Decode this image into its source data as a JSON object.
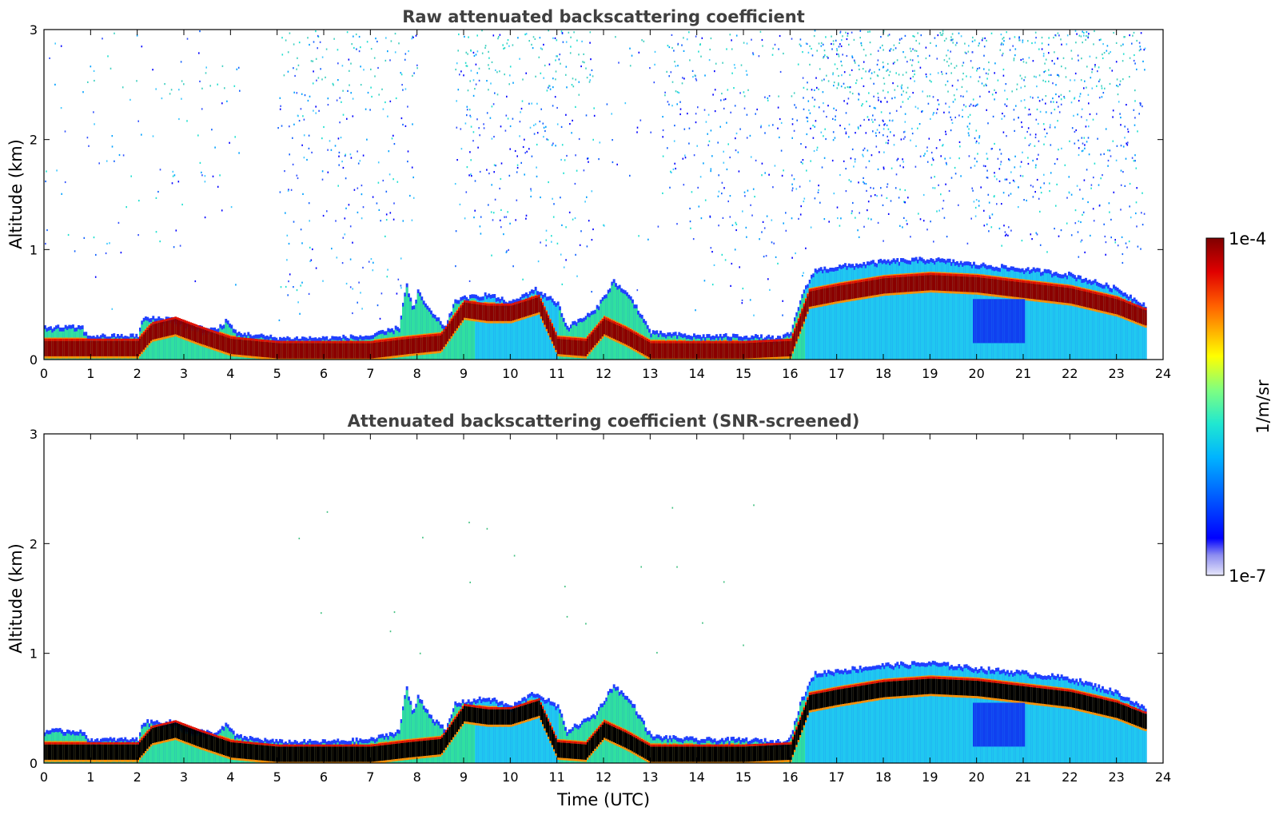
{
  "chart_data": [
    {
      "type": "heatmap",
      "title": "Raw attenuated backscattering coefficient",
      "xlabel": "",
      "ylabel": "Altitude (km)",
      "xlim": [
        0,
        24
      ],
      "ylim": [
        0,
        3
      ],
      "xticks": [
        "0",
        "1",
        "2",
        "3",
        "4",
        "5",
        "6",
        "7",
        "8",
        "9",
        "10",
        "11",
        "12",
        "13",
        "14",
        "15",
        "16",
        "17",
        "18",
        "19",
        "20",
        "21",
        "22",
        "23",
        "24"
      ],
      "yticks": [
        "0",
        "1",
        "2",
        "3"
      ],
      "data_end_hour": 23.6,
      "boundary_layer_top_km": [
        [
          0,
          0.3
        ],
        [
          0.8,
          0.3
        ],
        [
          0.9,
          0.22
        ],
        [
          2.0,
          0.22
        ],
        [
          2.1,
          0.38
        ],
        [
          2.8,
          0.38
        ],
        [
          3.2,
          0.3
        ],
        [
          3.7,
          0.28
        ],
        [
          3.9,
          0.36
        ],
        [
          4.1,
          0.25
        ],
        [
          5,
          0.2
        ],
        [
          6,
          0.2
        ],
        [
          7,
          0.22
        ],
        [
          7.6,
          0.3
        ],
        [
          7.75,
          0.7
        ],
        [
          7.9,
          0.45
        ],
        [
          8.0,
          0.62
        ],
        [
          8.3,
          0.42
        ],
        [
          8.6,
          0.3
        ],
        [
          8.8,
          0.55
        ],
        [
          9.5,
          0.6
        ],
        [
          10,
          0.52
        ],
        [
          10.5,
          0.65
        ],
        [
          11.0,
          0.52
        ],
        [
          11.2,
          0.3
        ],
        [
          11.8,
          0.45
        ],
        [
          12.2,
          0.72
        ],
        [
          12.6,
          0.55
        ],
        [
          13.0,
          0.25
        ],
        [
          14,
          0.22
        ],
        [
          15,
          0.22
        ],
        [
          15.8,
          0.2
        ],
        [
          16.0,
          0.25
        ],
        [
          16.2,
          0.55
        ],
        [
          16.5,
          0.82
        ],
        [
          17,
          0.85
        ],
        [
          18,
          0.9
        ],
        [
          19,
          0.92
        ],
        [
          20,
          0.87
        ],
        [
          21,
          0.83
        ],
        [
          22,
          0.78
        ],
        [
          23,
          0.65
        ],
        [
          23.6,
          0.5
        ]
      ],
      "boundary_layer_core_km": [
        [
          0,
          0.1
        ],
        [
          2.0,
          0.1
        ],
        [
          2.3,
          0.25
        ],
        [
          2.8,
          0.3
        ],
        [
          3.3,
          0.22
        ],
        [
          4,
          0.12
        ],
        [
          5,
          0.08
        ],
        [
          6,
          0.08
        ],
        [
          7,
          0.08
        ],
        [
          7.8,
          0.12
        ],
        [
          8.5,
          0.15
        ],
        [
          9.0,
          0.45
        ],
        [
          9.5,
          0.42
        ],
        [
          10,
          0.42
        ],
        [
          10.6,
          0.5
        ],
        [
          11.0,
          0.12
        ],
        [
          11.6,
          0.1
        ],
        [
          12.0,
          0.3
        ],
        [
          12.5,
          0.2
        ],
        [
          13.0,
          0.08
        ],
        [
          14,
          0.08
        ],
        [
          15,
          0.08
        ],
        [
          16.0,
          0.1
        ],
        [
          16.4,
          0.55
        ],
        [
          17,
          0.6
        ],
        [
          18,
          0.67
        ],
        [
          19,
          0.7
        ],
        [
          20,
          0.68
        ],
        [
          21,
          0.63
        ],
        [
          22,
          0.58
        ],
        [
          23,
          0.48
        ],
        [
          23.6,
          0.38
        ]
      ],
      "colorbar": {
        "max_label": "1e-4",
        "min_label": "1e-7",
        "unit": "1/m/sr"
      },
      "colors": {
        "high": "#800000",
        "low": "#0000ff",
        "background": "#ffffff"
      }
    },
    {
      "type": "heatmap",
      "title": "Attenuated backscattering coefficient (SNR-screened)",
      "xlabel": "Time (UTC)",
      "ylabel": "Altitude (km)",
      "xlim": [
        0,
        24
      ],
      "ylim": [
        0,
        3
      ],
      "xticks": [
        "0",
        "1",
        "2",
        "3",
        "4",
        "5",
        "6",
        "7",
        "8",
        "9",
        "10",
        "11",
        "12",
        "13",
        "14",
        "15",
        "16",
        "17",
        "18",
        "19",
        "20",
        "21",
        "22",
        "23",
        "24"
      ],
      "yticks": [
        "0",
        "1",
        "2",
        "3"
      ],
      "saturated_color": "#000000"
    }
  ]
}
